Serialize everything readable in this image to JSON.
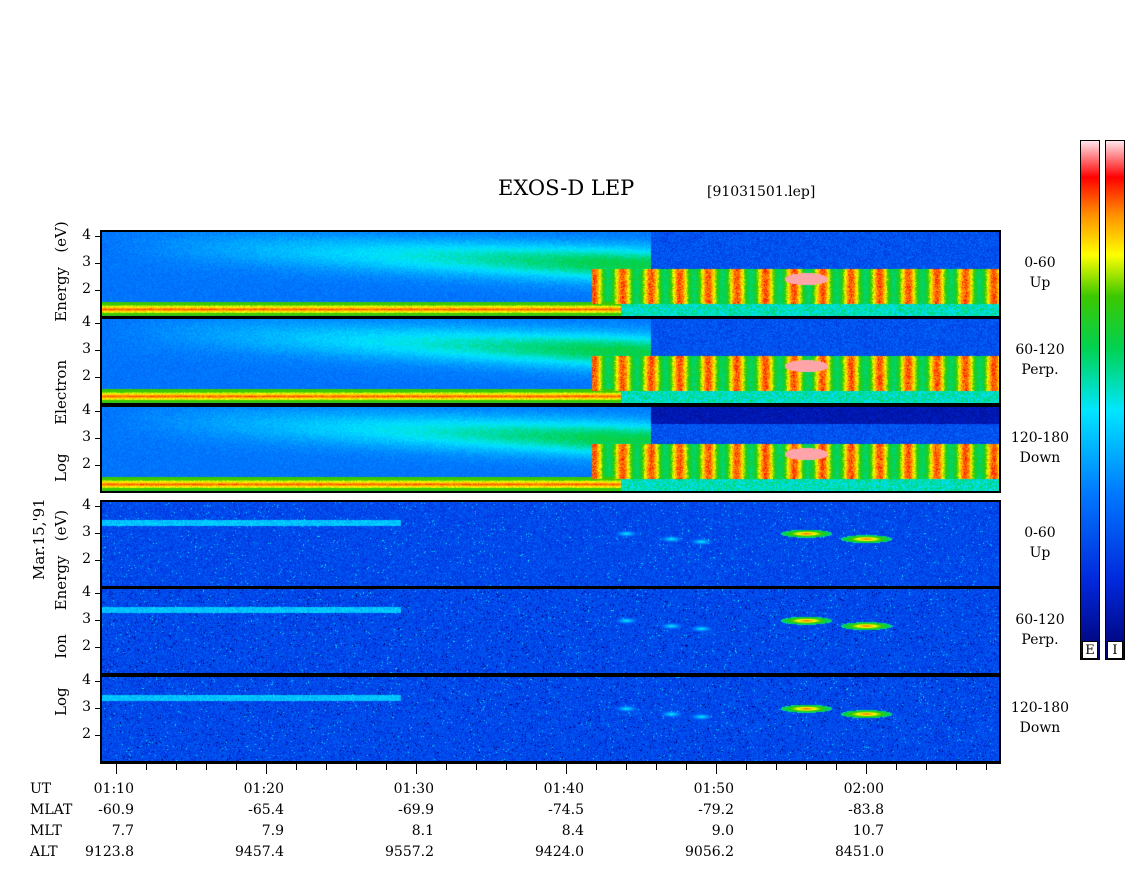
{
  "title": "EXOS-D LEP",
  "subtitle": "[91031501.lep]",
  "date_label": "Mar.15,'91",
  "y_labels": {
    "electron": [
      "Log",
      "Electron",
      "Energy",
      "(eV)"
    ],
    "ion": [
      "Log",
      "Ion",
      "Energy",
      "(eV)"
    ]
  },
  "panels": [
    {
      "species": "electron",
      "range_label": "0-60",
      "direction_label": "Up"
    },
    {
      "species": "electron",
      "range_label": "60-120",
      "direction_label": "Perp."
    },
    {
      "species": "electron",
      "range_label": "120-180",
      "direction_label": "Down"
    },
    {
      "species": "ion",
      "range_label": "0-60",
      "direction_label": "Up"
    },
    {
      "species": "ion",
      "range_label": "60-120",
      "direction_label": "Perp."
    },
    {
      "species": "ion",
      "range_label": "120-180",
      "direction_label": "Down"
    }
  ],
  "y_tick_labels": [
    "4",
    "3",
    "2"
  ],
  "colorbar_labels": [
    "E",
    "I"
  ],
  "colors": {
    "scale": [
      "#fde6ea",
      "#ff0000",
      "#ff8000",
      "#ffff00",
      "#00c000",
      "#00ffff",
      "#0060ff",
      "#0000a0"
    ]
  },
  "footer": {
    "row_names": [
      "UT",
      "MLAT",
      "MLT",
      "ALT"
    ],
    "columns": [
      {
        "UT": "01:10",
        "MLAT": "-60.9",
        "MLT": "7.7",
        "ALT": "9123.8"
      },
      {
        "UT": "01:20",
        "MLAT": "-65.4",
        "MLT": "7.9",
        "ALT": "9457.4"
      },
      {
        "UT": "01:30",
        "MLAT": "-69.9",
        "MLT": "8.1",
        "ALT": "9557.2"
      },
      {
        "UT": "01:40",
        "MLAT": "-74.5",
        "MLT": "8.4",
        "ALT": "9424.0"
      },
      {
        "UT": "01:50",
        "MLAT": "-79.2",
        "MLT": "9.0",
        "ALT": "9056.2"
      },
      {
        "UT": "02:00",
        "MLAT": "-83.8",
        "MLT": "10.7",
        "ALT": "8451.0"
      }
    ]
  },
  "chart_data": {
    "type": "heatmap",
    "title": "EXOS-D LEP",
    "x_unit": "UT",
    "x_range": [
      "01:09",
      "02:09"
    ],
    "y_scale": "log",
    "y_range": [
      1,
      4
    ],
    "y_ticks": [
      2,
      3,
      4
    ],
    "ylabel_electron": "Log Electron Energy (eV)",
    "ylabel_ion": "Log Ion Energy (eV)",
    "electron_features": {
      "low_energy_band_log_eV": 1.3,
      "onset_time": "01:43",
      "bursts_after_onset_log_eV": [
        1.8,
        2.8
      ],
      "max_intensity_time": "01:56"
    },
    "ion_features": {
      "band_before_0140_log_eV": 3.4,
      "burst_events": [
        {
          "time": "01:44",
          "log_eV": 3.0
        },
        {
          "time": "01:47",
          "log_eV": 2.8
        },
        {
          "time": "01:49",
          "log_eV": 2.7
        },
        {
          "time": "01:56",
          "log_eV": 3.0
        },
        {
          "time": "02:00",
          "log_eV": 2.8
        }
      ]
    }
  }
}
